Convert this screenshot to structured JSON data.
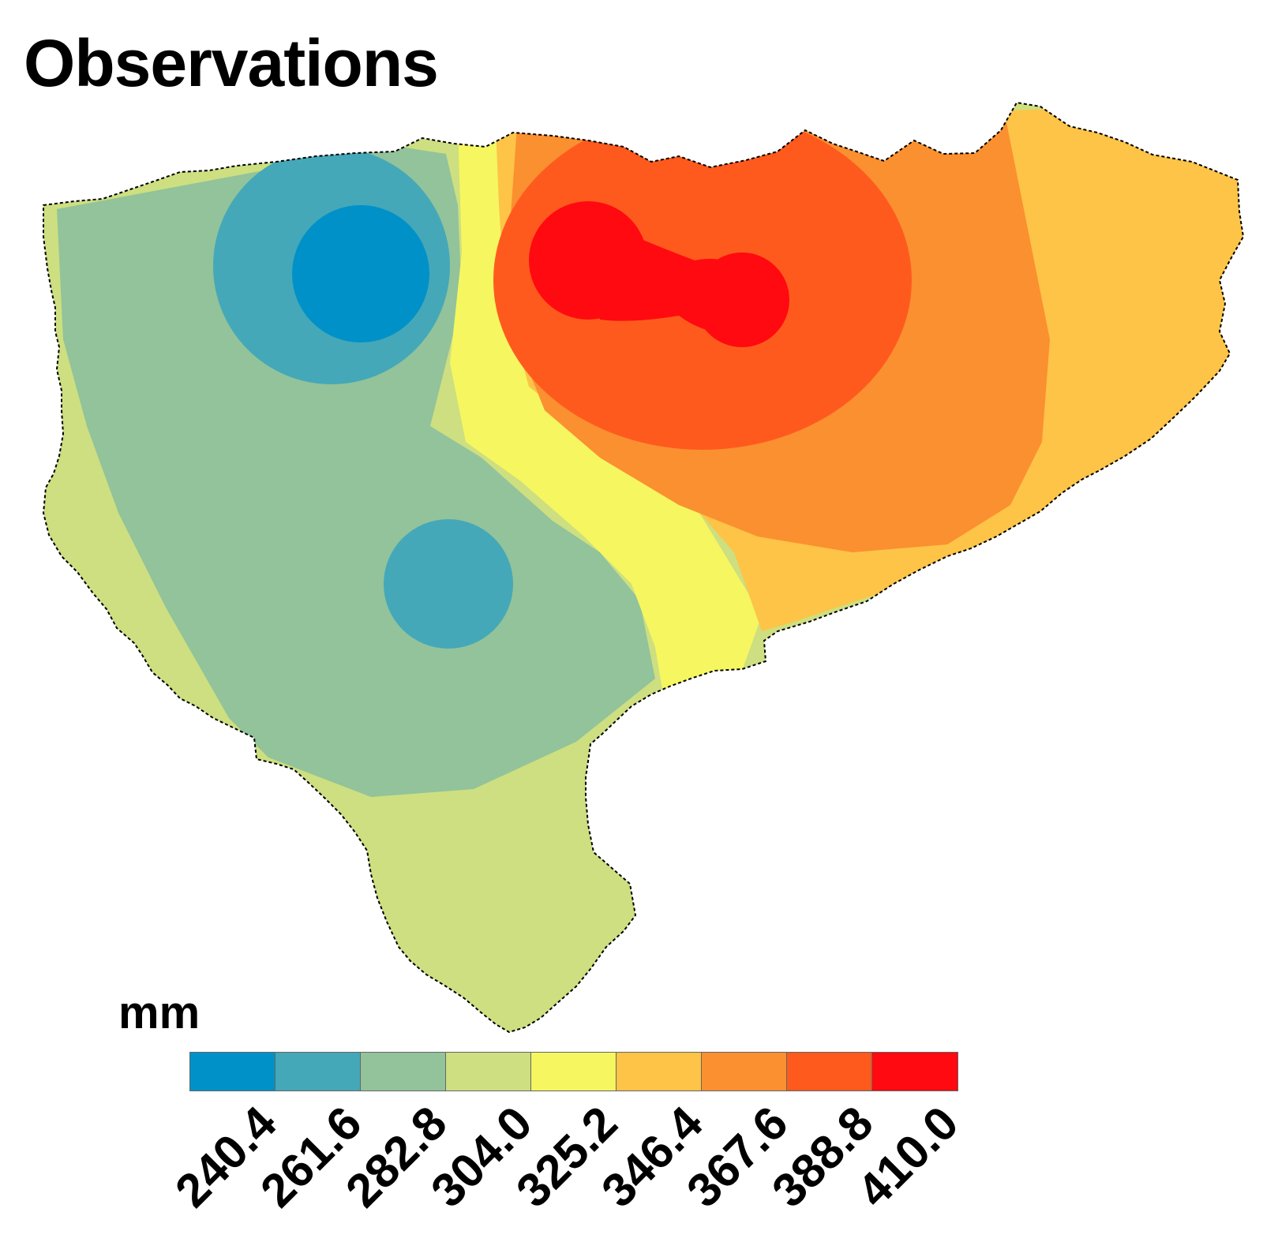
{
  "title": "Observations",
  "unit": "mm",
  "chart_data": {
    "type": "heatmap",
    "title": "Observations",
    "colorbar": {
      "label": "mm",
      "ticks": [
        "240.4",
        "261.6",
        "282.8",
        "304.0",
        "325.2",
        "346.4",
        "367.6",
        "388.8",
        "410.0"
      ],
      "colors": [
        "#0091C8",
        "#44A8B8",
        "#92C39A",
        "#CDDF80",
        "#F6F660",
        "#FDC447",
        "#FB9030",
        "#FF5A1E",
        "#FF0A10"
      ]
    }
  }
}
